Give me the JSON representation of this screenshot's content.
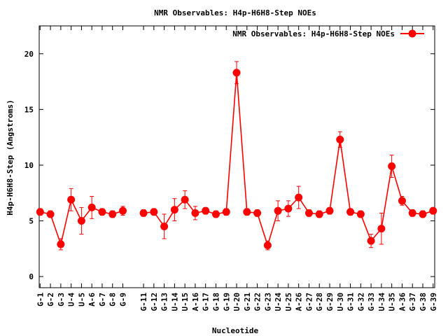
{
  "chart_data": {
    "type": "line",
    "title": "NMR Observables: H4p-H6H8-Step NOEs",
    "xlabel": "Nucleotide",
    "ylabel": "H4p-H6H8-Step (Angstroms)",
    "ylim": [
      -1,
      22.5
    ],
    "yticks": [
      0,
      5,
      10,
      15,
      20
    ],
    "grid": false,
    "legend_position": "top-right",
    "series_color": "#ff0000",
    "series": [
      {
        "name": "NMR Observables: H4p-H6H8-Step NOEs",
        "points": [
          {
            "label": "G-1",
            "index": 1,
            "y": 5.8,
            "err": 0.3
          },
          {
            "label": "G-2",
            "index": 2,
            "y": 5.6,
            "err": 0.3
          },
          {
            "label": "G-3",
            "index": 3,
            "y": 2.9,
            "err": 0.5
          },
          {
            "label": "U-4",
            "index": 4,
            "y": 6.9,
            "err": 1.0
          },
          {
            "label": "U-5",
            "index": 5,
            "y": 5.0,
            "err": 1.2
          },
          {
            "label": "A-6",
            "index": 6,
            "y": 6.2,
            "err": 1.0
          },
          {
            "label": "G-7",
            "index": 7,
            "y": 5.8,
            "err": 0.3
          },
          {
            "label": "G-8",
            "index": 8,
            "y": 5.6,
            "err": 0.3
          },
          {
            "label": "G-9",
            "index": 9,
            "y": 5.9,
            "err": 0.4
          },
          {
            "label": "G-11",
            "index": 11,
            "y": 5.7,
            "err": 0.3
          },
          {
            "label": "G-12",
            "index": 12,
            "y": 5.8,
            "err": 0.3
          },
          {
            "label": "G-13",
            "index": 13,
            "y": 4.5,
            "err": 1.1
          },
          {
            "label": "U-14",
            "index": 14,
            "y": 6.0,
            "err": 1.0
          },
          {
            "label": "U-15",
            "index": 15,
            "y": 6.9,
            "err": 0.8
          },
          {
            "label": "A-16",
            "index": 16,
            "y": 5.7,
            "err": 0.6
          },
          {
            "label": "G-17",
            "index": 17,
            "y": 5.9,
            "err": 0.3
          },
          {
            "label": "G-18",
            "index": 18,
            "y": 5.6,
            "err": 0.3
          },
          {
            "label": "G-19",
            "index": 19,
            "y": 5.8,
            "err": 0.3
          },
          {
            "label": "U-20",
            "index": 20,
            "y": 18.3,
            "err": 1.0
          },
          {
            "label": "G-21",
            "index": 21,
            "y": 5.8,
            "err": 0.3
          },
          {
            "label": "G-22",
            "index": 22,
            "y": 5.7,
            "err": 0.3
          },
          {
            "label": "G-23",
            "index": 23,
            "y": 2.8,
            "err": 0.4
          },
          {
            "label": "U-24",
            "index": 24,
            "y": 5.9,
            "err": 0.9
          },
          {
            "label": "U-25",
            "index": 25,
            "y": 6.1,
            "err": 0.7
          },
          {
            "label": "A-26",
            "index": 26,
            "y": 7.1,
            "err": 1.0
          },
          {
            "label": "G-27",
            "index": 27,
            "y": 5.7,
            "err": 0.3
          },
          {
            "label": "G-28",
            "index": 28,
            "y": 5.6,
            "err": 0.3
          },
          {
            "label": "G-29",
            "index": 29,
            "y": 5.9,
            "err": 0.3
          },
          {
            "label": "U-30",
            "index": 30,
            "y": 12.3,
            "err": 0.7
          },
          {
            "label": "G-31",
            "index": 31,
            "y": 5.8,
            "err": 0.3
          },
          {
            "label": "G-32",
            "index": 32,
            "y": 5.6,
            "err": 0.3
          },
          {
            "label": "G-33",
            "index": 33,
            "y": 3.2,
            "err": 0.6
          },
          {
            "label": "U-34",
            "index": 34,
            "y": 4.3,
            "err": 1.4
          },
          {
            "label": "U-35",
            "index": 35,
            "y": 9.9,
            "err": 1.0
          },
          {
            "label": "A-36",
            "index": 36,
            "y": 6.8,
            "err": 0.4
          },
          {
            "label": "G-37",
            "index": 37,
            "y": 5.7,
            "err": 0.3
          },
          {
            "label": "G-38",
            "index": 38,
            "y": 5.6,
            "err": 0.3
          },
          {
            "label": "G-39",
            "index": 39,
            "y": 5.9,
            "err": 0.3
          }
        ]
      }
    ]
  }
}
